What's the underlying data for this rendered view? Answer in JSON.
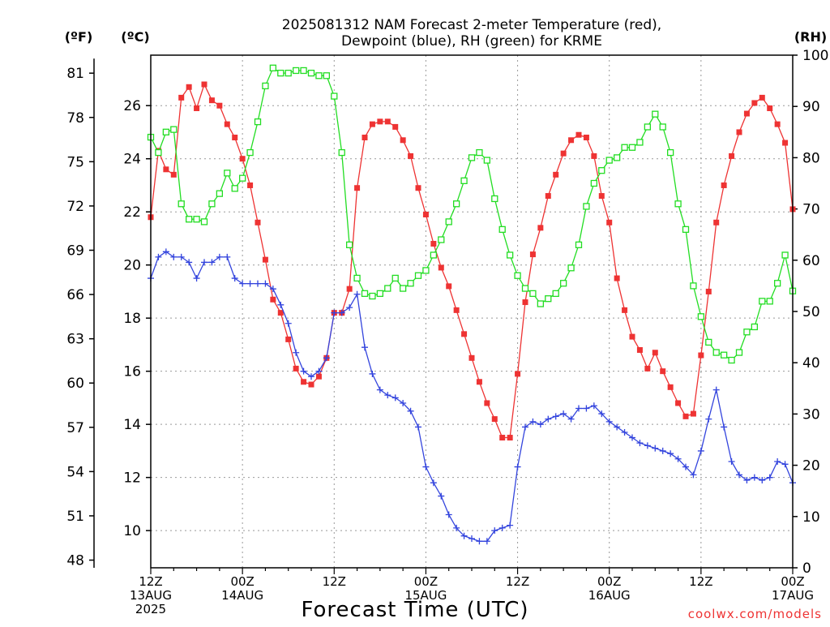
{
  "chart_data": {
    "type": "line",
    "title_lines": [
      "2025081312 NAM Forecast 2-meter Temperature (red),",
      "Dewpoint (blue), RH (green) for KRME"
    ],
    "xlabel": "Forecast Time (UTC)",
    "credit": "coolwx.com/models",
    "x_ticks": [
      {
        "x": 0,
        "lines": [
          "12Z",
          "13AUG",
          "2025"
        ]
      },
      {
        "x": 12,
        "lines": [
          "00Z",
          "14AUG"
        ]
      },
      {
        "x": 24,
        "lines": [
          "12Z"
        ]
      },
      {
        "x": 36,
        "lines": [
          "00Z",
          "15AUG"
        ]
      },
      {
        "x": 48,
        "lines": [
          "12Z"
        ]
      },
      {
        "x": 60,
        "lines": [
          "00Z",
          "16AUG"
        ]
      },
      {
        "x": 72,
        "lines": [
          "12Z"
        ]
      },
      {
        "x": 84,
        "lines": [
          "00Z",
          "17AUG"
        ]
      }
    ],
    "x_range_hours": [
      0,
      84
    ],
    "axes": {
      "fahrenheit": {
        "unit_label": "(ºF)",
        "ticks": [
          48,
          51,
          54,
          57,
          60,
          63,
          66,
          69,
          72,
          75,
          78,
          81
        ]
      },
      "celsius": {
        "unit_label": "(ºC)",
        "range": [
          8.6,
          27.9
        ],
        "ticks": [
          10,
          12,
          14,
          16,
          18,
          20,
          22,
          24,
          26
        ]
      },
      "rh": {
        "unit_label": "(RH)",
        "range": [
          0,
          100
        ],
        "ticks": [
          0,
          10,
          20,
          30,
          40,
          50,
          60,
          70,
          80,
          90,
          100
        ]
      }
    },
    "grid": true,
    "series": [
      {
        "name": "Temperature",
        "axis": "celsius",
        "color": "#ee3333",
        "marker": "filled-square",
        "x": [
          0,
          1,
          2,
          3,
          4,
          5,
          6,
          7,
          8,
          9,
          10,
          11,
          12,
          13,
          14,
          15,
          16,
          17,
          18,
          19,
          20,
          21,
          22,
          23,
          24,
          25,
          26,
          27,
          28,
          29,
          30,
          31,
          32,
          33,
          34,
          35,
          36,
          37,
          38,
          39,
          40,
          41,
          42,
          43,
          44,
          45,
          46,
          47,
          48,
          49,
          50,
          51,
          52,
          53,
          54,
          55,
          56,
          57,
          58,
          59,
          60,
          61,
          62,
          63,
          64,
          65,
          66,
          67,
          68,
          69,
          70,
          71,
          72,
          73,
          74,
          75,
          76,
          77,
          78,
          79,
          80,
          81,
          82,
          83,
          84
        ],
        "values": [
          21.8,
          24.3,
          23.6,
          23.4,
          26.3,
          26.7,
          25.9,
          26.8,
          26.2,
          26.0,
          25.3,
          24.8,
          24.0,
          23.0,
          21.6,
          20.2,
          18.7,
          18.2,
          17.2,
          16.1,
          15.6,
          15.5,
          15.8,
          16.5,
          18.2,
          18.2,
          19.1,
          22.9,
          24.8,
          25.3,
          25.4,
          25.4,
          25.2,
          24.7,
          24.1,
          22.9,
          21.9,
          20.8,
          19.9,
          19.2,
          18.3,
          17.4,
          16.5,
          15.6,
          14.8,
          14.2,
          13.5,
          13.5,
          15.9,
          18.6,
          20.4,
          21.4,
          22.6,
          23.4,
          24.2,
          24.7,
          24.9,
          24.8,
          24.1,
          22.6,
          21.6,
          19.5,
          18.3,
          17.3,
          16.8,
          16.1,
          16.7,
          16.0,
          15.4,
          14.8,
          14.3,
          14.4,
          16.6,
          19.0,
          21.6,
          23.0,
          24.1,
          25.0,
          25.7,
          26.1,
          26.3,
          25.9,
          25.3,
          24.6,
          22.1
        ]
      },
      {
        "name": "Dewpoint",
        "axis": "celsius",
        "color": "#3344dd",
        "marker": "plus",
        "x": [
          0,
          1,
          2,
          3,
          4,
          5,
          6,
          7,
          8,
          9,
          10,
          11,
          12,
          13,
          14,
          15,
          16,
          17,
          18,
          19,
          20,
          21,
          22,
          23,
          24,
          25,
          26,
          27,
          28,
          29,
          30,
          31,
          32,
          33,
          34,
          35,
          36,
          37,
          38,
          39,
          40,
          41,
          42,
          43,
          44,
          45,
          46,
          47,
          48,
          49,
          50,
          51,
          52,
          53,
          54,
          55,
          56,
          57,
          58,
          59,
          60,
          61,
          62,
          63,
          64,
          65,
          66,
          67,
          68,
          69,
          70,
          71,
          72,
          73,
          74,
          75,
          76,
          77,
          78,
          79,
          80,
          81,
          82,
          83,
          84
        ],
        "values": [
          19.5,
          20.3,
          20.5,
          20.3,
          20.3,
          20.1,
          19.5,
          20.1,
          20.1,
          20.3,
          20.3,
          19.5,
          19.3,
          19.3,
          19.3,
          19.3,
          19.1,
          18.5,
          17.8,
          16.7,
          16.0,
          15.8,
          16.0,
          16.5,
          18.2,
          18.2,
          18.4,
          18.9,
          16.9,
          15.9,
          15.3,
          15.1,
          15.0,
          14.8,
          14.5,
          13.9,
          12.4,
          11.8,
          11.3,
          10.6,
          10.1,
          9.8,
          9.7,
          9.6,
          9.6,
          10.0,
          10.1,
          10.2,
          12.4,
          13.9,
          14.1,
          14.0,
          14.2,
          14.3,
          14.4,
          14.2,
          14.6,
          14.6,
          14.7,
          14.4,
          14.1,
          13.9,
          13.7,
          13.5,
          13.3,
          13.2,
          13.1,
          13.0,
          12.9,
          12.7,
          12.4,
          12.1,
          13.0,
          14.2,
          15.3,
          13.9,
          12.6,
          12.1,
          11.9,
          12.0,
          11.9,
          12.0,
          12.6,
          12.5,
          11.8
        ]
      },
      {
        "name": "RH",
        "axis": "rh",
        "color": "#22dd22",
        "marker": "open-square",
        "x": [
          0,
          1,
          2,
          3,
          4,
          5,
          6,
          7,
          8,
          9,
          10,
          11,
          12,
          13,
          14,
          15,
          16,
          17,
          18,
          19,
          20,
          21,
          22,
          23,
          24,
          25,
          26,
          27,
          28,
          29,
          30,
          31,
          32,
          33,
          34,
          35,
          36,
          37,
          38,
          39,
          40,
          41,
          42,
          43,
          44,
          45,
          46,
          47,
          48,
          49,
          50,
          51,
          52,
          53,
          54,
          55,
          56,
          57,
          58,
          59,
          60,
          61,
          62,
          63,
          64,
          65,
          66,
          67,
          68,
          69,
          70,
          71,
          72,
          73,
          74,
          75,
          76,
          77,
          78,
          79,
          80,
          81,
          82,
          83,
          84
        ],
        "values": [
          84.0,
          81.0,
          85.0,
          85.5,
          71.0,
          68.0,
          68.0,
          67.5,
          71.0,
          73.0,
          77.0,
          74.0,
          76.0,
          81.0,
          87.0,
          94.0,
          97.5,
          96.5,
          96.5,
          97.0,
          97.0,
          96.5,
          96.0,
          96.0,
          92.0,
          81.0,
          63.0,
          56.5,
          53.5,
          53.0,
          53.5,
          54.5,
          56.5,
          54.5,
          55.5,
          57.0,
          58.0,
          61.0,
          64.0,
          67.5,
          71.0,
          75.5,
          80.0,
          81.0,
          79.5,
          72.0,
          66.0,
          61.0,
          57.0,
          54.5,
          53.5,
          51.5,
          52.5,
          53.5,
          55.5,
          58.5,
          63.0,
          70.5,
          75.0,
          77.5,
          79.5,
          80.0,
          82.0,
          82.0,
          83.0,
          86.0,
          88.5,
          86.0,
          81.0,
          71.0,
          66.0,
          55.0,
          49.0,
          44.0,
          42.0,
          41.5,
          40.5,
          42.0,
          46.0,
          47.0,
          52.0,
          52.0,
          55.5,
          61.0,
          54.0
        ]
      }
    ]
  }
}
